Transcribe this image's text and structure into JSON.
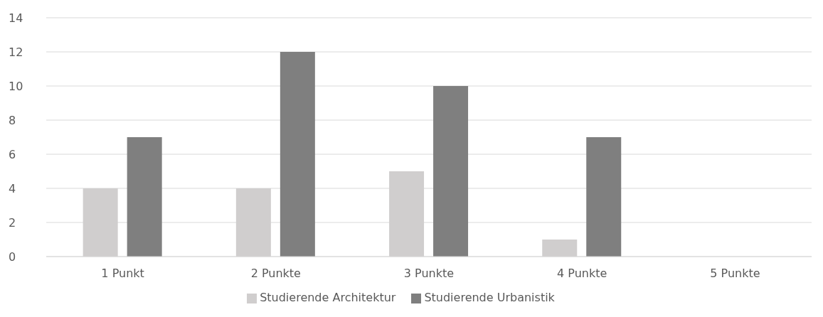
{
  "chart_data": {
    "type": "bar",
    "categories": [
      "1 Punkt",
      "2 Punkte",
      "3 Punkte",
      "4 Punkte",
      "5 Punkte"
    ],
    "series": [
      {
        "name": "Studierende Architektur",
        "color": "#d0cece",
        "values": [
          4,
          4,
          5,
          1,
          0
        ]
      },
      {
        "name": "Studierende Urbanistik",
        "color": "#7f7f7f",
        "values": [
          7,
          12,
          10,
          7,
          0
        ]
      }
    ],
    "ylim": [
      0,
      14
    ],
    "yticks": [
      0,
      2,
      4,
      6,
      8,
      10,
      12,
      14
    ],
    "grid": "y",
    "legend": "bottom"
  }
}
